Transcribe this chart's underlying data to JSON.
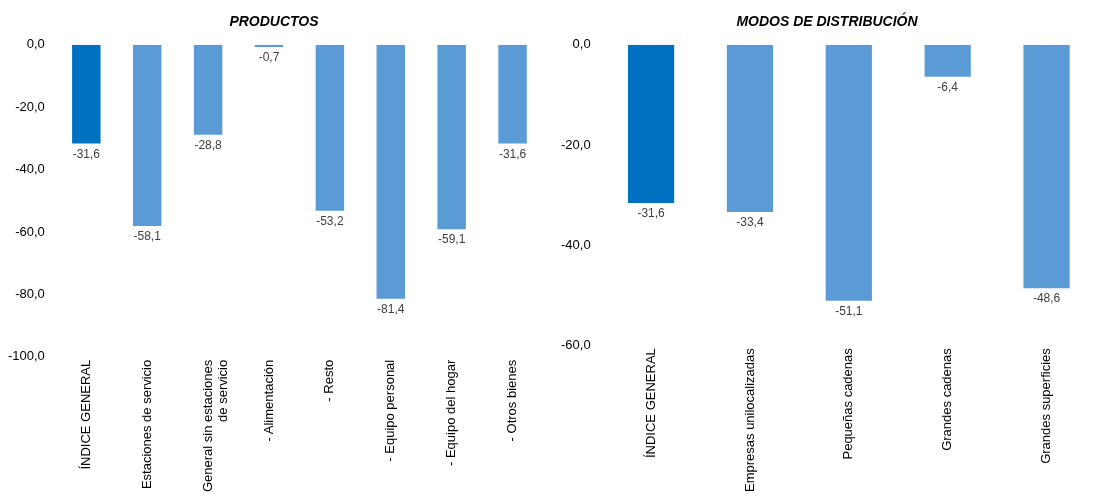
{
  "chart_data": [
    {
      "type": "bar",
      "title": "PRODUCTOS",
      "categories": [
        "ÍNDICE GENERAL",
        "Estaciones de servicio",
        "General sin estaciones de servicio",
        "- Alimentación",
        "- Resto",
        "- Equipo personal",
        "- Equipo del hogar",
        "- Otros bienes"
      ],
      "values": [
        -31.6,
        -58.1,
        -28.8,
        -0.7,
        -53.2,
        -81.4,
        -59.1,
        -31.6
      ],
      "colors": [
        "#0070c0",
        "#5b9bd5",
        "#5b9bd5",
        "#5b9bd5",
        "#5b9bd5",
        "#5b9bd5",
        "#5b9bd5",
        "#5b9bd5"
      ],
      "value_labels": [
        "-31,6",
        "-58,1",
        "-28,8",
        "-0,7",
        "-53,2",
        "-81,4",
        "-59,1",
        "-31,6"
      ],
      "ylim": [
        -100,
        0
      ],
      "yticks": [
        {
          "value": -100,
          "label": "-100,0"
        },
        {
          "value": -80,
          "label": "-80,0"
        },
        {
          "value": -60,
          "label": "-60,0"
        },
        {
          "value": -40,
          "label": "-40,0"
        },
        {
          "value": -20,
          "label": "-20,0"
        },
        {
          "value": 0,
          "label": "0,0"
        }
      ],
      "grid": false,
      "legend": false
    },
    {
      "type": "bar",
      "title": "MODOS DE DISTRIBUCIÓN",
      "categories": [
        "ÍNDICE GENERAL",
        "Empresas unilocalizadas",
        "Pequeñas cadenas",
        "Grandes cadenas",
        "Grandes superficies"
      ],
      "values": [
        -31.6,
        -33.4,
        -51.1,
        -6.4,
        -48.6
      ],
      "colors": [
        "#0070c0",
        "#5b9bd5",
        "#5b9bd5",
        "#5b9bd5",
        "#5b9bd5"
      ],
      "value_labels": [
        "-31,6",
        "-33,4",
        "-51,1",
        "-6,4",
        "-48,6"
      ],
      "ylim": [
        -60,
        0
      ],
      "yticks": [
        {
          "value": -60,
          "label": "-60,0"
        },
        {
          "value": -40,
          "label": "-40,0"
        },
        {
          "value": -20,
          "label": "-20,0"
        },
        {
          "value": 0,
          "label": "0,0"
        }
      ],
      "grid": false,
      "legend": false
    }
  ]
}
